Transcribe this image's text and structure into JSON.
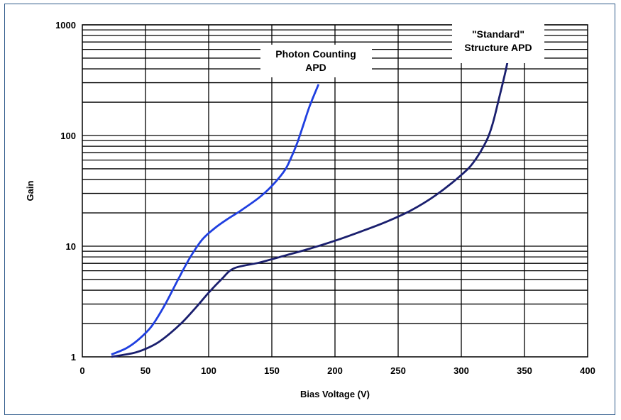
{
  "chart_data": {
    "type": "line",
    "title": "",
    "xlabel": "Bias Voltage (V)",
    "ylabel": "Gain",
    "xlim": [
      0,
      400
    ],
    "ylim": [
      1,
      1000
    ],
    "y_scale": "log",
    "grid": true,
    "x_ticks": [
      "0",
      "50",
      "100",
      "150",
      "200",
      "250",
      "300",
      "350",
      "400"
    ],
    "y_ticks": [
      "1",
      "10",
      "100",
      "1000"
    ],
    "annotations": [
      {
        "text_lines": [
          "Photon Counting",
          "APD"
        ],
        "series_index": 0
      },
      {
        "text_lines": [
          "\"Standard\"",
          "Structure APD"
        ],
        "series_index": 1
      }
    ],
    "series": [
      {
        "color": "#1f3fe0",
        "x": [
          23,
          35,
          45,
          55,
          65,
          75,
          85,
          95,
          105,
          115,
          125,
          140,
          150,
          160,
          165,
          170,
          175,
          180,
          187
        ],
        "y": [
          1.05,
          1.2,
          1.45,
          1.9,
          2.9,
          4.8,
          7.8,
          11.5,
          14.6,
          17.6,
          20.8,
          27.5,
          35,
          48,
          62,
          85,
          125,
          185,
          290
        ]
      },
      {
        "color": "#1a1f6e",
        "x": [
          23,
          40,
          50,
          60,
          70,
          80,
          90,
          100,
          110,
          120,
          140,
          160,
          180,
          200,
          220,
          240,
          260,
          280,
          300,
          310,
          320,
          325,
          330,
          335,
          338
        ],
        "y": [
          1.0,
          1.08,
          1.18,
          1.35,
          1.65,
          2.1,
          2.8,
          3.8,
          5.0,
          6.3,
          7.1,
          8.2,
          9.5,
          11.2,
          13.5,
          16.5,
          21,
          29,
          44,
          58,
          90,
          130,
          220,
          380,
          560
        ]
      }
    ]
  }
}
